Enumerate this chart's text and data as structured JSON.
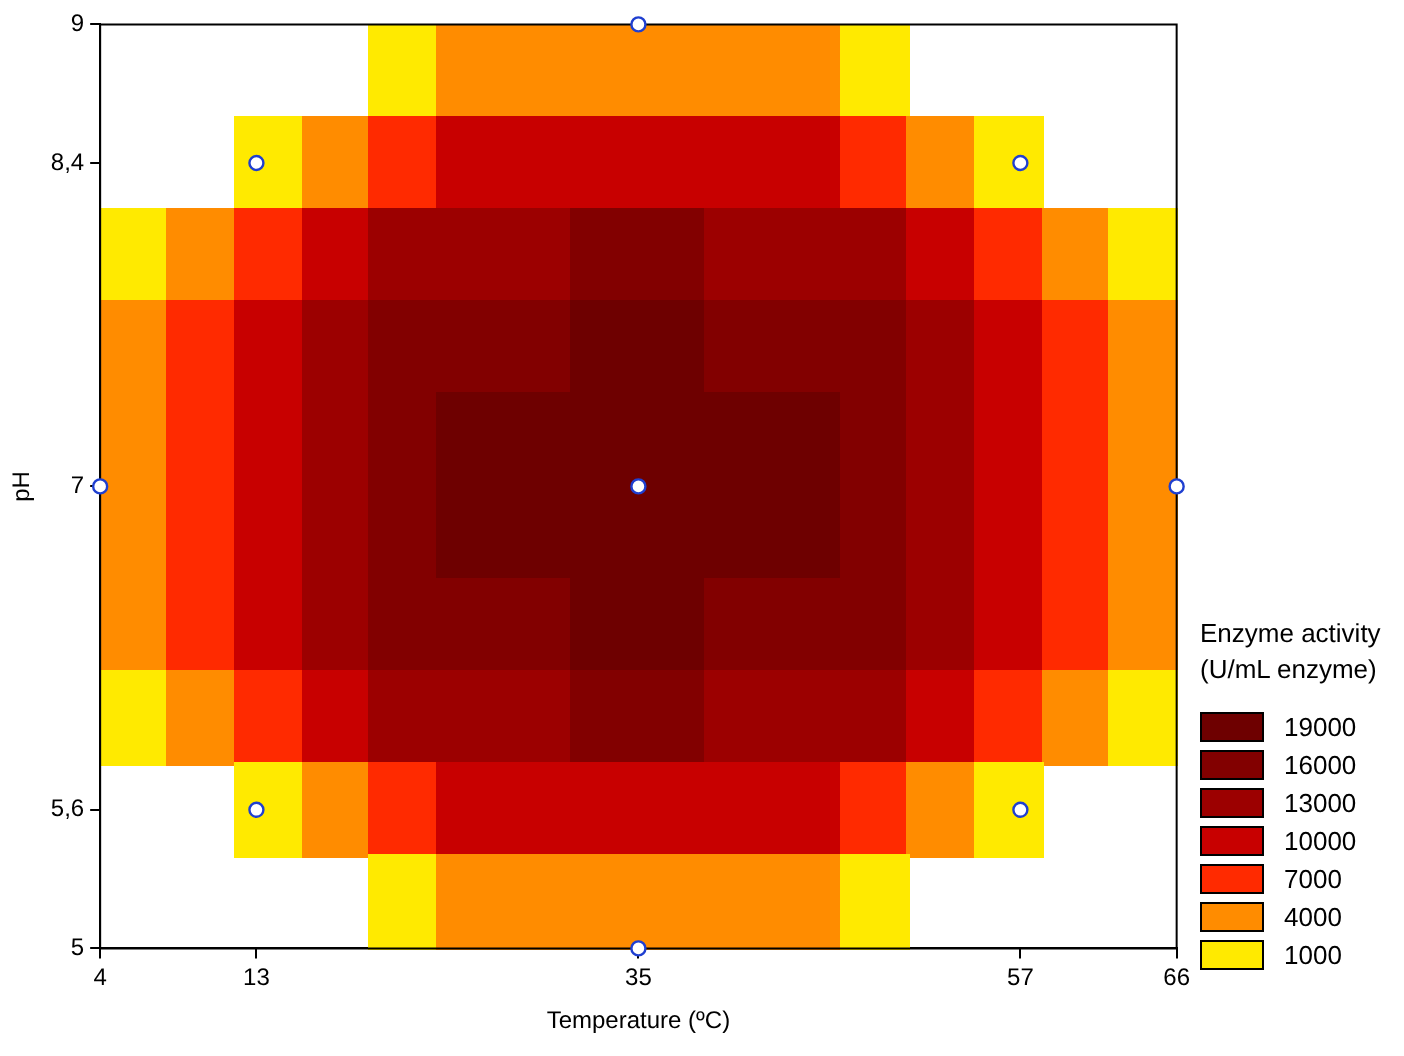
{
  "chart_data": {
    "type": "heatmap",
    "xlabel": "Temperature (ºC)",
    "ylabel": "pH",
    "legend_title": "Enzyme activity\n(U/mL enzyme)",
    "xlim": [
      4,
      66
    ],
    "xticks": [
      4,
      13,
      35,
      57,
      66
    ],
    "ylim": [
      5,
      9
    ],
    "yticks": [
      5,
      {
        "value": 5.6,
        "label": "5,6"
      },
      7,
      {
        "value": 8.4,
        "label": "8,4"
      },
      9
    ],
    "clim": [
      -500,
      20500
    ],
    "cticks": [
      19000,
      16000,
      13000,
      10000,
      7000,
      4000,
      1000
    ],
    "colors": [
      "#6e0000",
      "#820000",
      "#9c0000",
      "#c80000",
      "#ff2a00",
      "#ff8c00",
      "#ffea00"
    ],
    "cells": [
      [
        null,
        null,
        null,
        null,
        1000,
        4000,
        4000,
        4000,
        4000,
        4000,
        4000,
        1000,
        null,
        null,
        null,
        null
      ],
      [
        null,
        null,
        1000,
        4000,
        7000,
        10000,
        10000,
        10000,
        10000,
        10000,
        10000,
        7000,
        4000,
        1000,
        null,
        null
      ],
      [
        1000,
        4000,
        7000,
        10000,
        13000,
        13000,
        13000,
        16000,
        16000,
        13000,
        13000,
        13000,
        10000,
        7000,
        4000,
        1000
      ],
      [
        4000,
        7000,
        10000,
        13000,
        16000,
        16000,
        16000,
        19000,
        19000,
        16000,
        16000,
        16000,
        13000,
        10000,
        7000,
        4000
      ],
      [
        4000,
        7000,
        10000,
        13000,
        16000,
        19000,
        19000,
        19000,
        19000,
        19000,
        19000,
        16000,
        13000,
        10000,
        7000,
        4000
      ],
      [
        4000,
        7000,
        10000,
        13000,
        16000,
        19000,
        19000,
        19000,
        19000,
        19000,
        19000,
        16000,
        13000,
        10000,
        7000,
        4000
      ],
      [
        4000,
        7000,
        10000,
        13000,
        16000,
        16000,
        16000,
        19000,
        19000,
        16000,
        16000,
        16000,
        13000,
        10000,
        7000,
        4000
      ],
      [
        1000,
        4000,
        7000,
        10000,
        13000,
        13000,
        13000,
        16000,
        16000,
        13000,
        13000,
        13000,
        10000,
        7000,
        4000,
        1000
      ],
      [
        null,
        null,
        1000,
        4000,
        7000,
        10000,
        10000,
        10000,
        10000,
        10000,
        10000,
        7000,
        4000,
        1000,
        null,
        null
      ],
      [
        null,
        null,
        null,
        null,
        1000,
        4000,
        4000,
        4000,
        4000,
        4000,
        4000,
        1000,
        null,
        null,
        null,
        null
      ]
    ],
    "series": [
      {
        "type": "scatter",
        "color": "#ffffff",
        "marker": "circle",
        "x": [
          13,
          13,
          57,
          57,
          35,
          35,
          4,
          66,
          35
        ],
        "values": [
          5.6,
          8.4,
          5.6,
          8.4,
          5,
          9,
          7,
          7,
          7
        ]
      }
    ]
  }
}
